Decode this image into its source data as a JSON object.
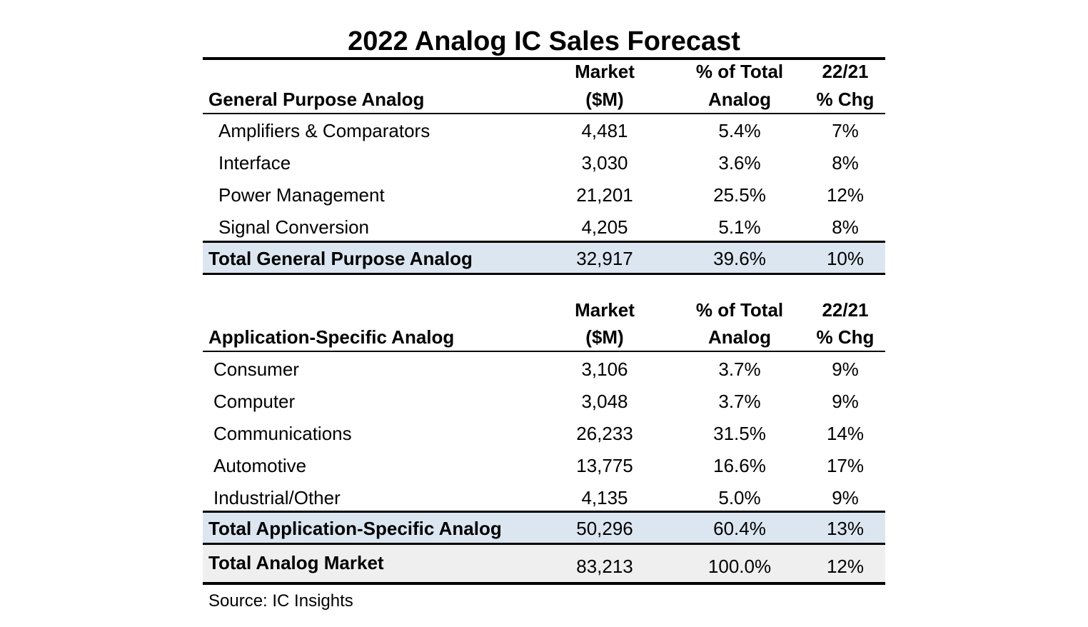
{
  "chart_data": {
    "type": "table",
    "title": "2022 Analog IC Sales Forecast",
    "columns": {
      "market_line1": "Market",
      "market_line2": "($M)",
      "pct_line1": "% of Total",
      "pct_line2": "Analog",
      "chg_line1": "22/21",
      "chg_line2": "% Chg"
    },
    "sections": [
      {
        "heading": "General Purpose Analog",
        "rows": [
          {
            "label": "Amplifiers & Comparators",
            "market": "4,481",
            "pct": "5.4%",
            "chg": "7%"
          },
          {
            "label": "Interface",
            "market": "3,030",
            "pct": "3.6%",
            "chg": "8%"
          },
          {
            "label": "Power Management",
            "market": "21,201",
            "pct": "25.5%",
            "chg": "12%"
          },
          {
            "label": "Signal Conversion",
            "market": "4,205",
            "pct": "5.1%",
            "chg": "8%"
          }
        ],
        "total": {
          "label": "Total General Purpose Analog",
          "market": "32,917",
          "pct": "39.6%",
          "chg": "10%"
        }
      },
      {
        "heading": "Application-Specific Analog",
        "rows": [
          {
            "label": "Consumer",
            "market": "3,106",
            "pct": "3.7%",
            "chg": "9%"
          },
          {
            "label": "Computer",
            "market": "3,048",
            "pct": "3.7%",
            "chg": "9%"
          },
          {
            "label": "Communications",
            "market": "26,233",
            "pct": "31.5%",
            "chg": "14%"
          },
          {
            "label": "Automotive",
            "market": "13,775",
            "pct": "16.6%",
            "chg": "17%"
          },
          {
            "label": "Industrial/Other",
            "market": "4,135",
            "pct": "5.0%",
            "chg": "9%"
          }
        ],
        "total": {
          "label": "Total Application-Specific Analog",
          "market": "50,296",
          "pct": "60.4%",
          "chg": "13%"
        }
      }
    ],
    "grand_total": {
      "label": "Total Analog Market",
      "market": "83,213",
      "pct": "100.0%",
      "chg": "12%"
    },
    "source": "Source:  IC Insights",
    "colors": {
      "total_row_bg": "#dce6f1",
      "grand_total_bg": "#efefef"
    }
  }
}
